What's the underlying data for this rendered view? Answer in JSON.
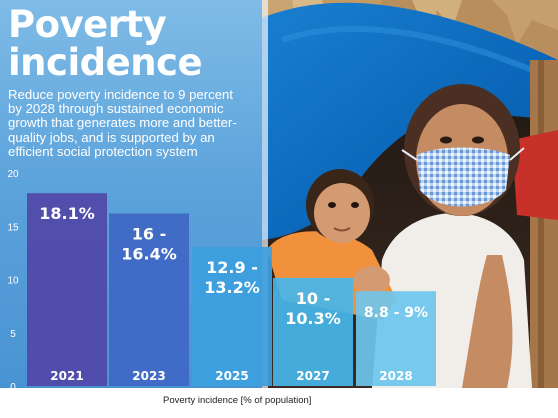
{
  "title": {
    "line1": "Poverty",
    "line2": "incidence"
  },
  "subtitle": "Reduce poverty incidence to 9 percent\nby 2028 through sustained economic\ngrowth that generates more and better-\nquality jobs, and is supported by an\nefficient social protection system",
  "colors": {
    "bar_2021": "#5146a8",
    "bar_2023": "#3f67c4",
    "bar_2025": "#3d9fe0",
    "bar_2027": "#47b6ea",
    "bar_2028": "#6ec5ee"
  },
  "chart_data": {
    "type": "bar",
    "categories": [
      "2021",
      "2023",
      "2025",
      "2027",
      "2028"
    ],
    "values": [
      18.1,
      16.2,
      13.05,
      10.15,
      8.9
    ],
    "value_labels": [
      [
        "18.1%"
      ],
      [
        "16 -",
        "16.4%"
      ],
      [
        "12.9 -",
        "13.2%"
      ],
      [
        "10 -",
        "10.3%"
      ],
      [
        "8.8 - 9%"
      ]
    ],
    "yticks": [
      "0",
      "5",
      "10",
      "15",
      "20"
    ],
    "ylim": [
      0,
      20
    ],
    "xlabel": "Poverty incidence [% of population]",
    "grid": false
  }
}
